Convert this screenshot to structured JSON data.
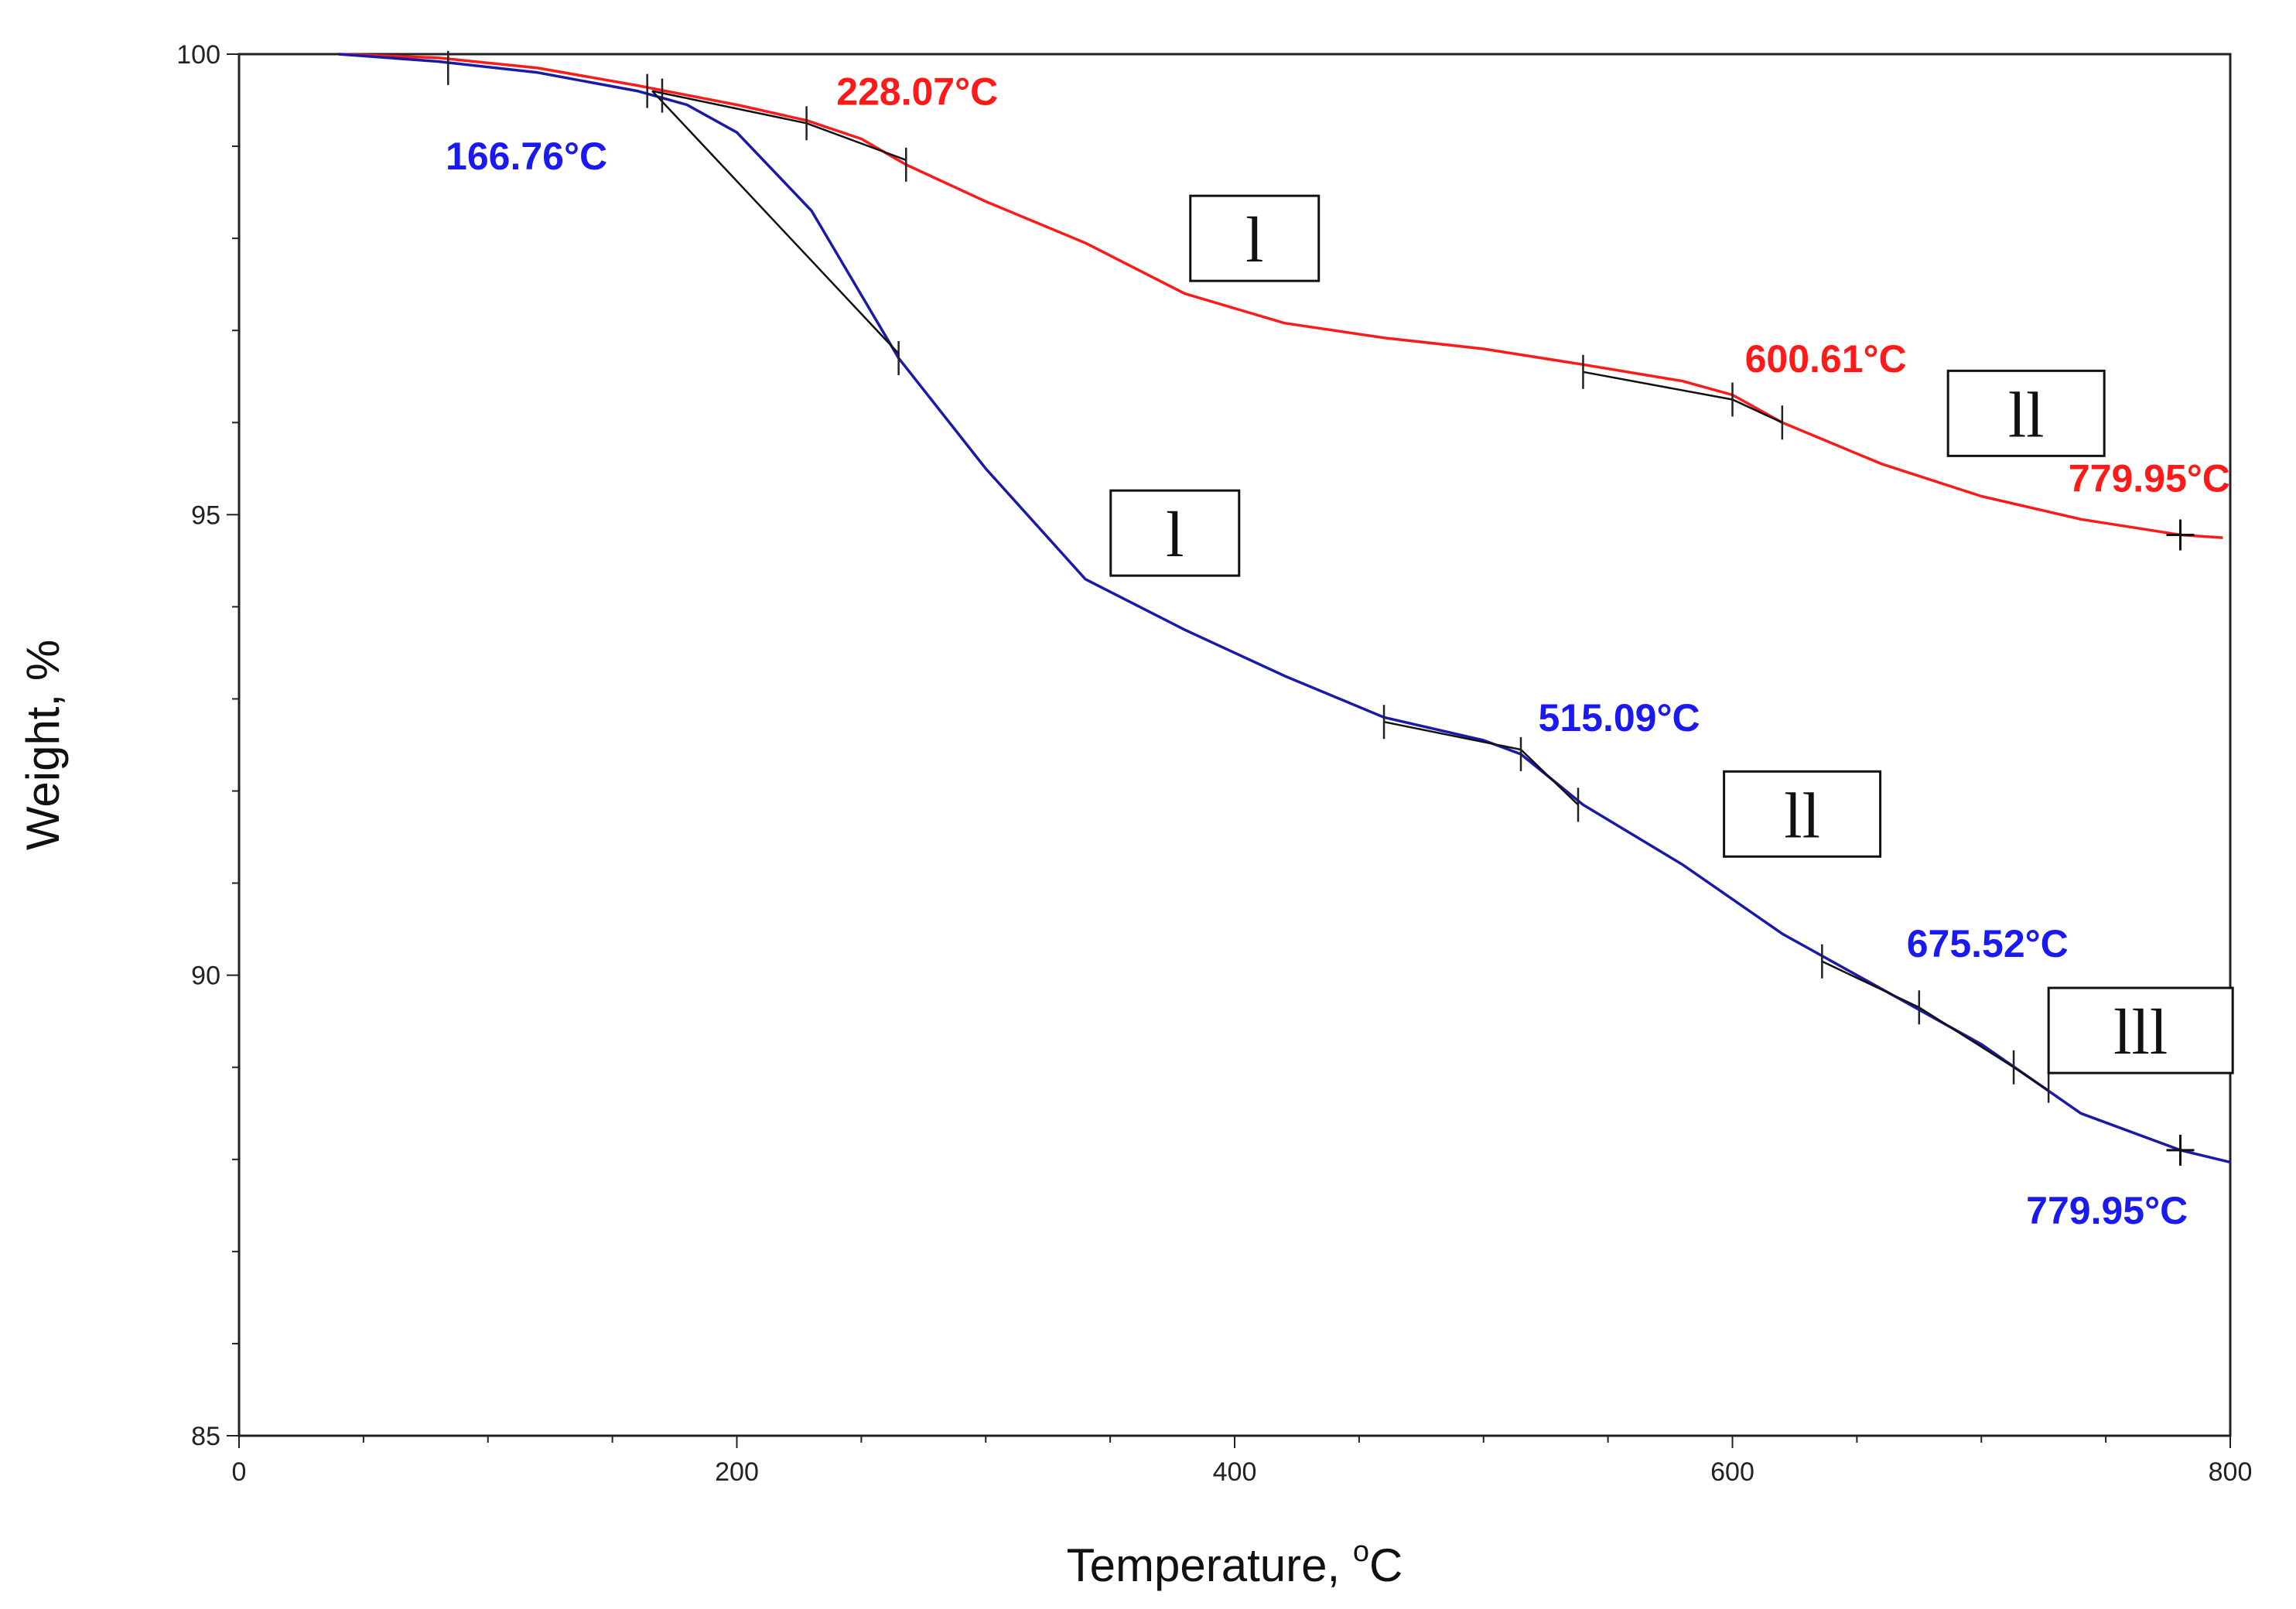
{
  "chart_data": {
    "type": "line",
    "title": "",
    "xlabel": "Temperature, ",
    "xlabel_sup": "o",
    "xlabel_unit": "C",
    "ylabel": "Weight, %",
    "xlim": [
      0,
      800
    ],
    "ylim": [
      85,
      100
    ],
    "x_ticks": [
      0,
      200,
      400,
      600,
      800
    ],
    "y_ticks": [
      85,
      90,
      95,
      100
    ],
    "grid": false,
    "series": [
      {
        "name": "red",
        "color": "#ff1a1a",
        "points": [
          [
            40,
            100
          ],
          [
            80,
            99.96
          ],
          [
            120,
            99.85
          ],
          [
            160,
            99.66
          ],
          [
            200,
            99.45
          ],
          [
            228,
            99.28
          ],
          [
            250,
            99.08
          ],
          [
            268,
            98.8
          ],
          [
            300,
            98.4
          ],
          [
            340,
            97.95
          ],
          [
            380,
            97.4
          ],
          [
            420,
            97.08
          ],
          [
            460,
            96.92
          ],
          [
            500,
            96.8
          ],
          [
            540,
            96.63
          ],
          [
            580,
            96.45
          ],
          [
            600,
            96.3
          ],
          [
            620,
            96.0
          ],
          [
            660,
            95.55
          ],
          [
            700,
            95.2
          ],
          [
            740,
            94.95
          ],
          [
            780,
            94.78
          ],
          [
            797,
            94.75
          ]
        ]
      },
      {
        "name": "blue",
        "color": "#1a1aa8",
        "points": [
          [
            40,
            100
          ],
          [
            80,
            99.92
          ],
          [
            120,
            99.8
          ],
          [
            160,
            99.6
          ],
          [
            180,
            99.45
          ],
          [
            200,
            99.15
          ],
          [
            230,
            98.3
          ],
          [
            265,
            96.7
          ],
          [
            300,
            95.5
          ],
          [
            340,
            94.3
          ],
          [
            380,
            93.75
          ],
          [
            420,
            93.25
          ],
          [
            460,
            92.8
          ],
          [
            500,
            92.55
          ],
          [
            515,
            92.4
          ],
          [
            540,
            91.85
          ],
          [
            580,
            91.2
          ],
          [
            620,
            90.45
          ],
          [
            660,
            89.85
          ],
          [
            700,
            89.25
          ],
          [
            740,
            88.5
          ],
          [
            780,
            88.1
          ],
          [
            800,
            87.97
          ]
        ]
      }
    ],
    "tangents": [
      {
        "series": "red",
        "points": [
          [
            166,
            99.6
          ],
          [
            228,
            99.25
          ],
          [
            268,
            98.85
          ]
        ]
      },
      {
        "series": "blue",
        "points": [
          [
            166,
            99.6
          ],
          [
            265,
            96.75
          ]
        ]
      },
      {
        "series": "red",
        "points": [
          [
            540,
            96.55
          ],
          [
            600,
            96.25
          ],
          [
            620,
            96.0
          ]
        ]
      },
      {
        "series": "blue",
        "points": [
          [
            460,
            92.75
          ],
          [
            515,
            92.45
          ],
          [
            538,
            91.85
          ]
        ]
      },
      {
        "series": "blue",
        "points": [
          [
            636,
            90.15
          ],
          [
            675,
            89.65
          ],
          [
            713,
            89.0
          ],
          [
            727,
            88.75
          ]
        ]
      }
    ],
    "tick_marks": [
      {
        "series": "blue",
        "points": [
          [
            84,
            99.85
          ],
          [
            164,
            99.6
          ],
          [
            170,
            99.55
          ],
          [
            265,
            96.7
          ],
          [
            460,
            92.75
          ],
          [
            515,
            92.4
          ],
          [
            538,
            91.85
          ],
          [
            636,
            90.15
          ],
          [
            675,
            89.65
          ],
          [
            713,
            89.0
          ],
          [
            727,
            88.8
          ]
        ]
      },
      {
        "series": "red",
        "points": [
          [
            228,
            99.25
          ],
          [
            268,
            98.8
          ],
          [
            540,
            96.55
          ],
          [
            600,
            96.25
          ],
          [
            620,
            96.0
          ]
        ]
      }
    ],
    "end_markers": [
      {
        "series": "red",
        "x": 779.95,
        "y": 94.78
      },
      {
        "series": "blue",
        "x": 779.95,
        "y": 88.1
      }
    ],
    "annotations": [
      {
        "text": "228.07°C",
        "color": "#ff1a1a",
        "x": 240,
        "y": 99.45
      },
      {
        "text": "166.76°C",
        "color": "#1a1af0",
        "x": 83,
        "y": 98.75
      },
      {
        "text": "600.61°C",
        "color": "#ff1a1a",
        "x": 605,
        "y": 96.55
      },
      {
        "text": "779.95°C",
        "color": "#ff1a1a",
        "x": 735,
        "y": 95.25
      },
      {
        "text": "515.09°C",
        "color": "#1a1af0",
        "x": 522,
        "y": 92.65
      },
      {
        "text": "675.52°C",
        "color": "#1a1af0",
        "x": 670,
        "y": 90.2
      },
      {
        "text": "779.95°C",
        "color": "#1a1af0",
        "x": 718,
        "y": 87.3
      }
    ],
    "stage_labels": [
      {
        "text": "l",
        "x": 408,
        "y": 98.0
      },
      {
        "text": "ll",
        "x": 718,
        "y": 96.1
      },
      {
        "text": "l",
        "x": 376,
        "y": 94.8
      },
      {
        "text": "ll",
        "x": 628,
        "y": 91.75
      },
      {
        "text": "lll",
        "x": 764,
        "y": 89.4
      }
    ]
  }
}
